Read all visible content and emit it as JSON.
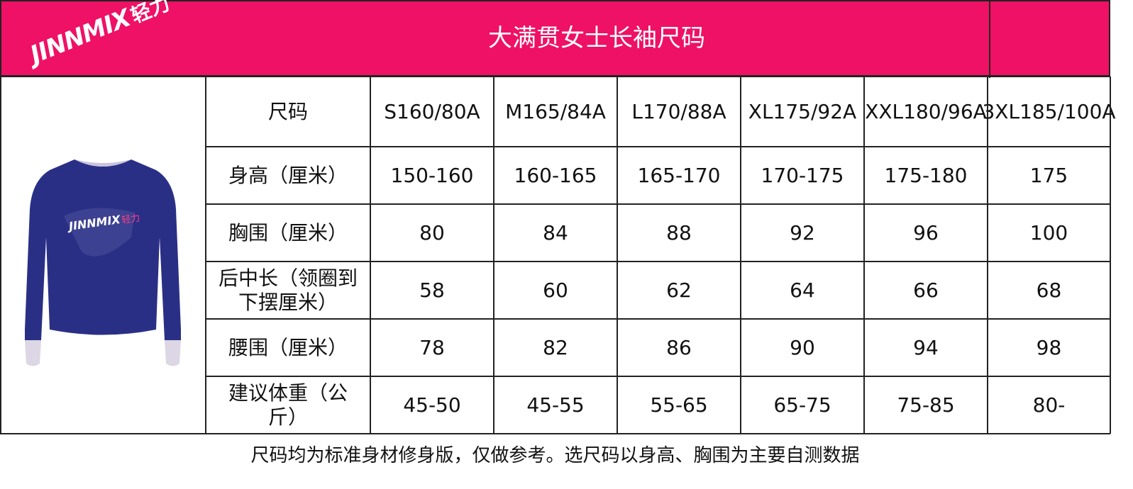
{
  "header": {
    "logo": {
      "brand": "JINNMIX",
      "chinese": "轻力"
    },
    "title": "大满贯女士长袖尺码"
  },
  "table": {
    "corner": "尺码",
    "sizes": [
      {
        "size": "S",
        "spec": "160/80A"
      },
      {
        "size": "M",
        "spec": "165/84A"
      },
      {
        "size": "L",
        "spec": "170/88A"
      },
      {
        "size": "XL",
        "spec": "175/92A"
      },
      {
        "size": "XXL",
        "spec": "180/96A"
      },
      {
        "size": "3XL",
        "spec": "185/100A"
      }
    ],
    "rows": [
      {
        "label": "身高（厘米）",
        "values": [
          "150-160",
          "160-165",
          "165-170",
          "170-175",
          "175-180",
          "175"
        ]
      },
      {
        "label": "胸围（厘米）",
        "values": [
          "80",
          "84",
          "88",
          "92",
          "96",
          "100"
        ]
      },
      {
        "label": "后中长（领圈到下摆厘米）",
        "values": [
          "58",
          "60",
          "62",
          "64",
          "66",
          "68"
        ]
      },
      {
        "label": "腰围（厘米）",
        "values": [
          "78",
          "82",
          "86",
          "90",
          "94",
          "98"
        ]
      },
      {
        "label": "建议体重（公斤）",
        "values": [
          "45-50",
          "45-55",
          "55-65",
          "65-75",
          "75-85",
          "80-"
        ]
      }
    ]
  },
  "note": "尺码均为标准身材修身版，仅做参考。选尺码以身高、胸围为主要自测数据"
}
